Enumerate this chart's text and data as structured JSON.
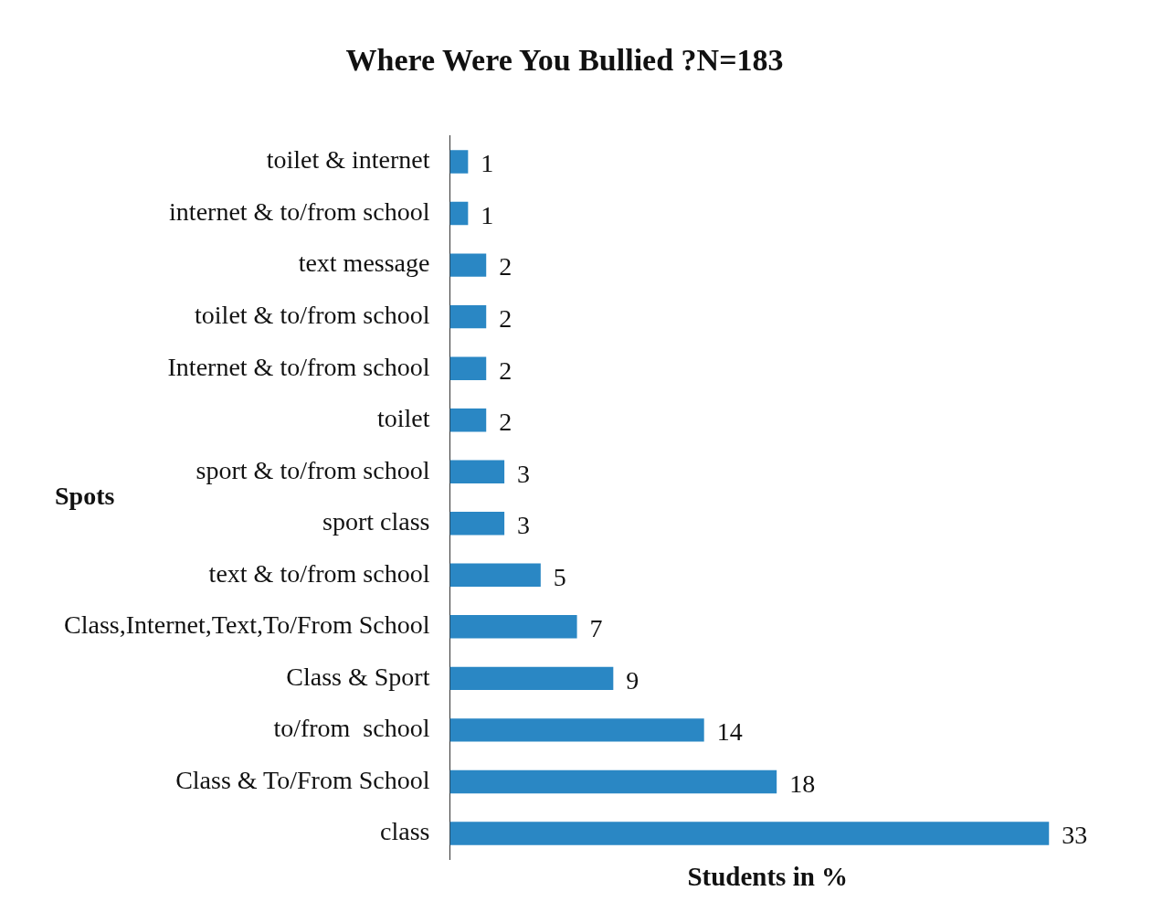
{
  "chart_data": {
    "type": "bar",
    "orientation": "horizontal",
    "title": "Where Were You Bullied ?N=183",
    "xlabel": "Students in %",
    "ylabel": "Spots",
    "categories": [
      "toilet & internet",
      "internet & to/from school",
      "text message",
      "toilet & to/from school",
      "Internet & to/from school",
      "toilet",
      "sport & to/from school",
      "sport class",
      "text & to/from school",
      "Class,Internet,Text,To/From School",
      "Class & Sport",
      "to/from  school",
      "Class & To/From School",
      "class"
    ],
    "values": [
      1,
      1,
      2,
      2,
      2,
      2,
      3,
      3,
      5,
      7,
      9,
      14,
      18,
      33
    ],
    "color": "#2a87c4",
    "data_labels": true,
    "grid": false,
    "legend": false
  }
}
